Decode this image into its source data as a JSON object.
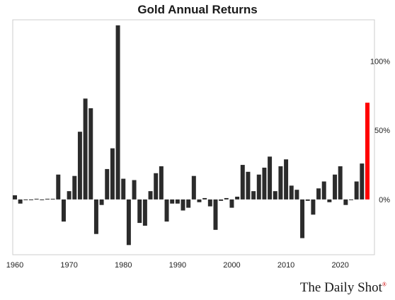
{
  "colors": {
    "bar": "#2b2b2b",
    "highlight": "#ff0000",
    "frame": "#cccccc"
  },
  "brand": {
    "name": "The Daily Shot",
    "mark": "®"
  },
  "chart_data": {
    "type": "bar",
    "title": "Gold Annual Returns",
    "xlabel": "",
    "ylabel": "",
    "x": [
      1960,
      1961,
      1962,
      1963,
      1964,
      1965,
      1966,
      1967,
      1968,
      1969,
      1970,
      1971,
      1972,
      1973,
      1974,
      1975,
      1976,
      1977,
      1978,
      1979,
      1980,
      1981,
      1982,
      1983,
      1984,
      1985,
      1986,
      1987,
      1988,
      1989,
      1990,
      1991,
      1992,
      1993,
      1994,
      1995,
      1996,
      1997,
      1998,
      1999,
      2000,
      2001,
      2002,
      2003,
      2004,
      2005,
      2006,
      2007,
      2008,
      2009,
      2010,
      2011,
      2012,
      2013,
      2014,
      2015,
      2016,
      2017,
      2018,
      2019,
      2020,
      2021,
      2022,
      2023,
      2024,
      2025
    ],
    "values": [
      3,
      -3,
      -0.5,
      -0.5,
      0.5,
      -0.5,
      0.5,
      0.5,
      18,
      -16,
      6,
      17,
      49,
      73,
      66,
      -25,
      -4,
      22,
      37,
      126,
      15,
      -33,
      14,
      -17,
      -19,
      6,
      19,
      24,
      -16,
      -3,
      -3,
      -8,
      -6,
      17,
      -2,
      1,
      -5,
      -22,
      -1,
      1,
      -6,
      2,
      25,
      20,
      6,
      18,
      23,
      31,
      6,
      24,
      29,
      10,
      7,
      -28,
      -1,
      -11,
      8,
      13,
      -2,
      18,
      24,
      -4,
      0,
      13,
      26,
      70
    ],
    "highlight_index": 65,
    "xticks": [
      1960,
      1970,
      1980,
      1990,
      2000,
      2010,
      2020
    ],
    "xtick_labels": [
      "1960",
      "1970",
      "1980",
      "1990",
      "2000",
      "2010",
      "2020"
    ],
    "yticks": [
      0,
      50,
      100
    ],
    "ytick_labels": [
      "0%",
      "50%",
      "100%"
    ],
    "ylim": [
      -40,
      130
    ],
    "xlim": [
      1959.5,
      2026
    ],
    "grid": false,
    "y_axis_side": "right"
  }
}
